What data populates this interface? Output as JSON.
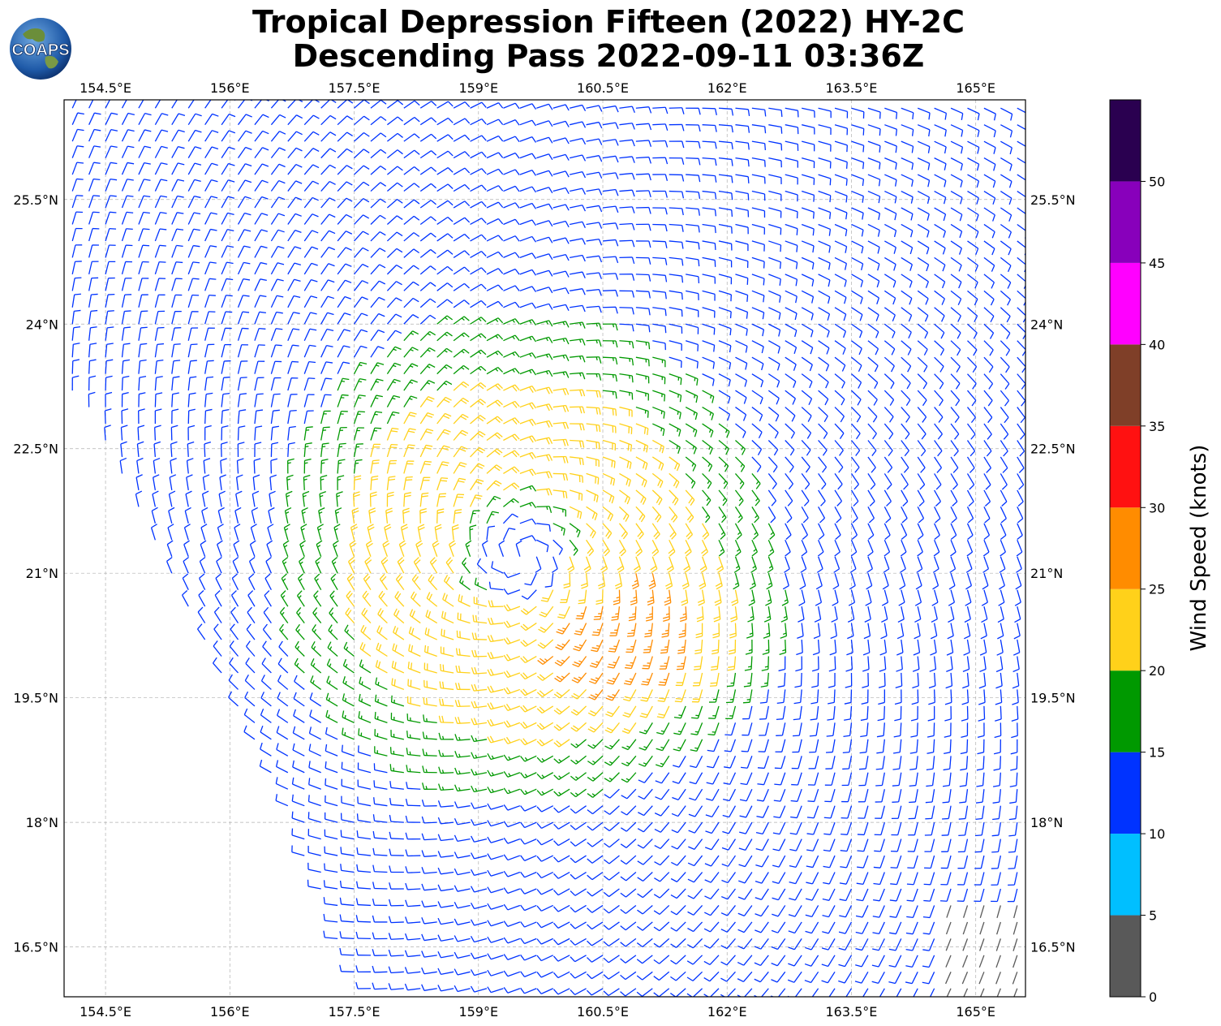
{
  "title_line1": "Tropical Depression Fifteen (2022) HY-2C",
  "title_line2": "Descending Pass 2022-09-11 03:36Z",
  "logo_text": "COAPS",
  "map": {
    "lon_labels": [
      "154.5°E",
      "156°E",
      "157.5°E",
      "159°E",
      "160.5°E",
      "162°E",
      "163.5°E",
      "165°E"
    ],
    "lat_labels": [
      "25.5°N",
      "24°N",
      "22.5°N",
      "21°N",
      "19.5°N",
      "18°N",
      "16.5°N"
    ],
    "lon_values": [
      154.5,
      156.0,
      157.5,
      159.0,
      160.5,
      162.0,
      163.5,
      165.0
    ],
    "lat_values": [
      25.5,
      24.0,
      22.5,
      21.0,
      19.5,
      18.0,
      16.5
    ],
    "lon_range": [
      154.0,
      165.6
    ],
    "lat_range": [
      15.9,
      26.7
    ],
    "storm_center": {
      "lon": 159.5,
      "lat": 21.2
    },
    "grid": true
  },
  "colorbar": {
    "label": "Wind Speed (knots)",
    "tick_labels": [
      "0",
      "5",
      "10",
      "15",
      "20",
      "25",
      "30",
      "35",
      "40",
      "45",
      "50"
    ],
    "bins": [
      {
        "min": 0,
        "max": 5,
        "color": "#595959"
      },
      {
        "min": 5,
        "max": 10,
        "color": "#00bfff"
      },
      {
        "min": 10,
        "max": 15,
        "color": "#0033ff"
      },
      {
        "min": 15,
        "max": 20,
        "color": "#009900"
      },
      {
        "min": 20,
        "max": 25,
        "color": "#ffd11a"
      },
      {
        "min": 25,
        "max": 30,
        "color": "#ff8c00"
      },
      {
        "min": 30,
        "max": 35,
        "color": "#ff1111"
      },
      {
        "min": 35,
        "max": 40,
        "color": "#7f3f28"
      },
      {
        "min": 40,
        "max": 45,
        "color": "#ff00ff"
      },
      {
        "min": 45,
        "max": 50,
        "color": "#8800bb"
      },
      {
        "min": 50,
        "max": 55,
        "color": "#2a0050"
      }
    ]
  }
}
